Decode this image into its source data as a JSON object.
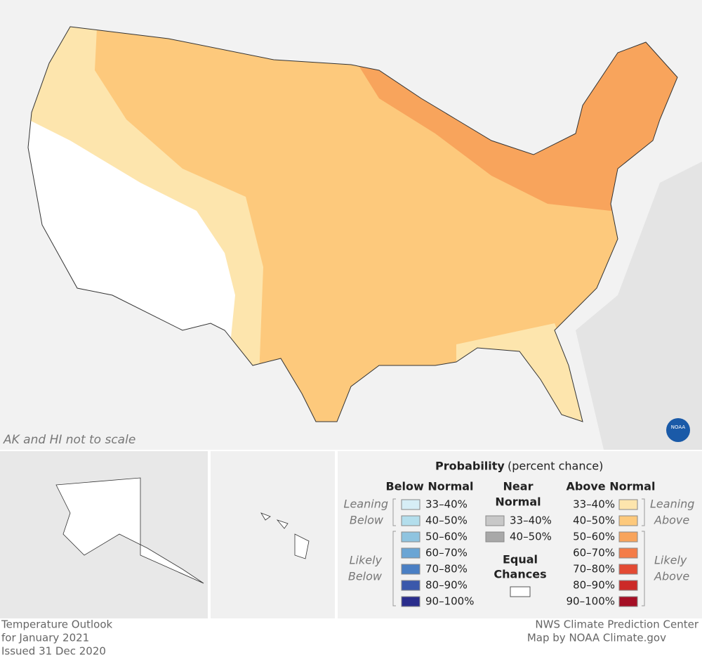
{
  "map": {
    "note": "AK and HI not to scale",
    "logo": "NOAA",
    "colors": {
      "water": "#e4e4e4",
      "land": "#f2f2f2",
      "equal": "#ffffff",
      "leaning_above": "#fde5ad",
      "above_40_50": "#fdc97c",
      "likely_above": "#f8a45c"
    }
  },
  "legend": {
    "title": "Probability",
    "subtitle": "(percent chance)",
    "below": {
      "heading": "Below Normal",
      "leaning": [
        "Leaning",
        "Below"
      ],
      "likely": [
        "Likely",
        "Below"
      ],
      "items": [
        "33–40%",
        "40–50%",
        "50–60%",
        "60–70%",
        "70–80%",
        "80–90%",
        "90–100%"
      ],
      "colors": [
        "#d6eef6",
        "#b3deec",
        "#8fc4e0",
        "#6aa5d4",
        "#4a7fc4",
        "#3a58ab",
        "#2a2d8c"
      ]
    },
    "near": {
      "heading": [
        "Near",
        "Normal"
      ],
      "items": [
        "33–40%",
        "40–50%"
      ],
      "colors": [
        "#c8c8c8",
        "#a8a8a8"
      ]
    },
    "equal": {
      "heading": [
        "Equal",
        "Chances"
      ],
      "color": "#ffffff"
    },
    "above": {
      "heading": "Above Normal",
      "leaning": [
        "Leaning",
        "Above"
      ],
      "likely": [
        "Likely",
        "Above"
      ],
      "items": [
        "33–40%",
        "40–50%",
        "50–60%",
        "60–70%",
        "70–80%",
        "80–90%",
        "90–100%"
      ],
      "colors": [
        "#fde5ad",
        "#fdc97c",
        "#f8a45c",
        "#f47c48",
        "#e34a33",
        "#cc2a27",
        "#a50f25"
      ]
    }
  },
  "footer": {
    "left": [
      "Temperature Outlook",
      "for January 2021",
      "Issued 31 Dec 2020"
    ],
    "right": [
      "NWS Climate Prediction Center",
      "Map by NOAA Climate.gov"
    ]
  }
}
